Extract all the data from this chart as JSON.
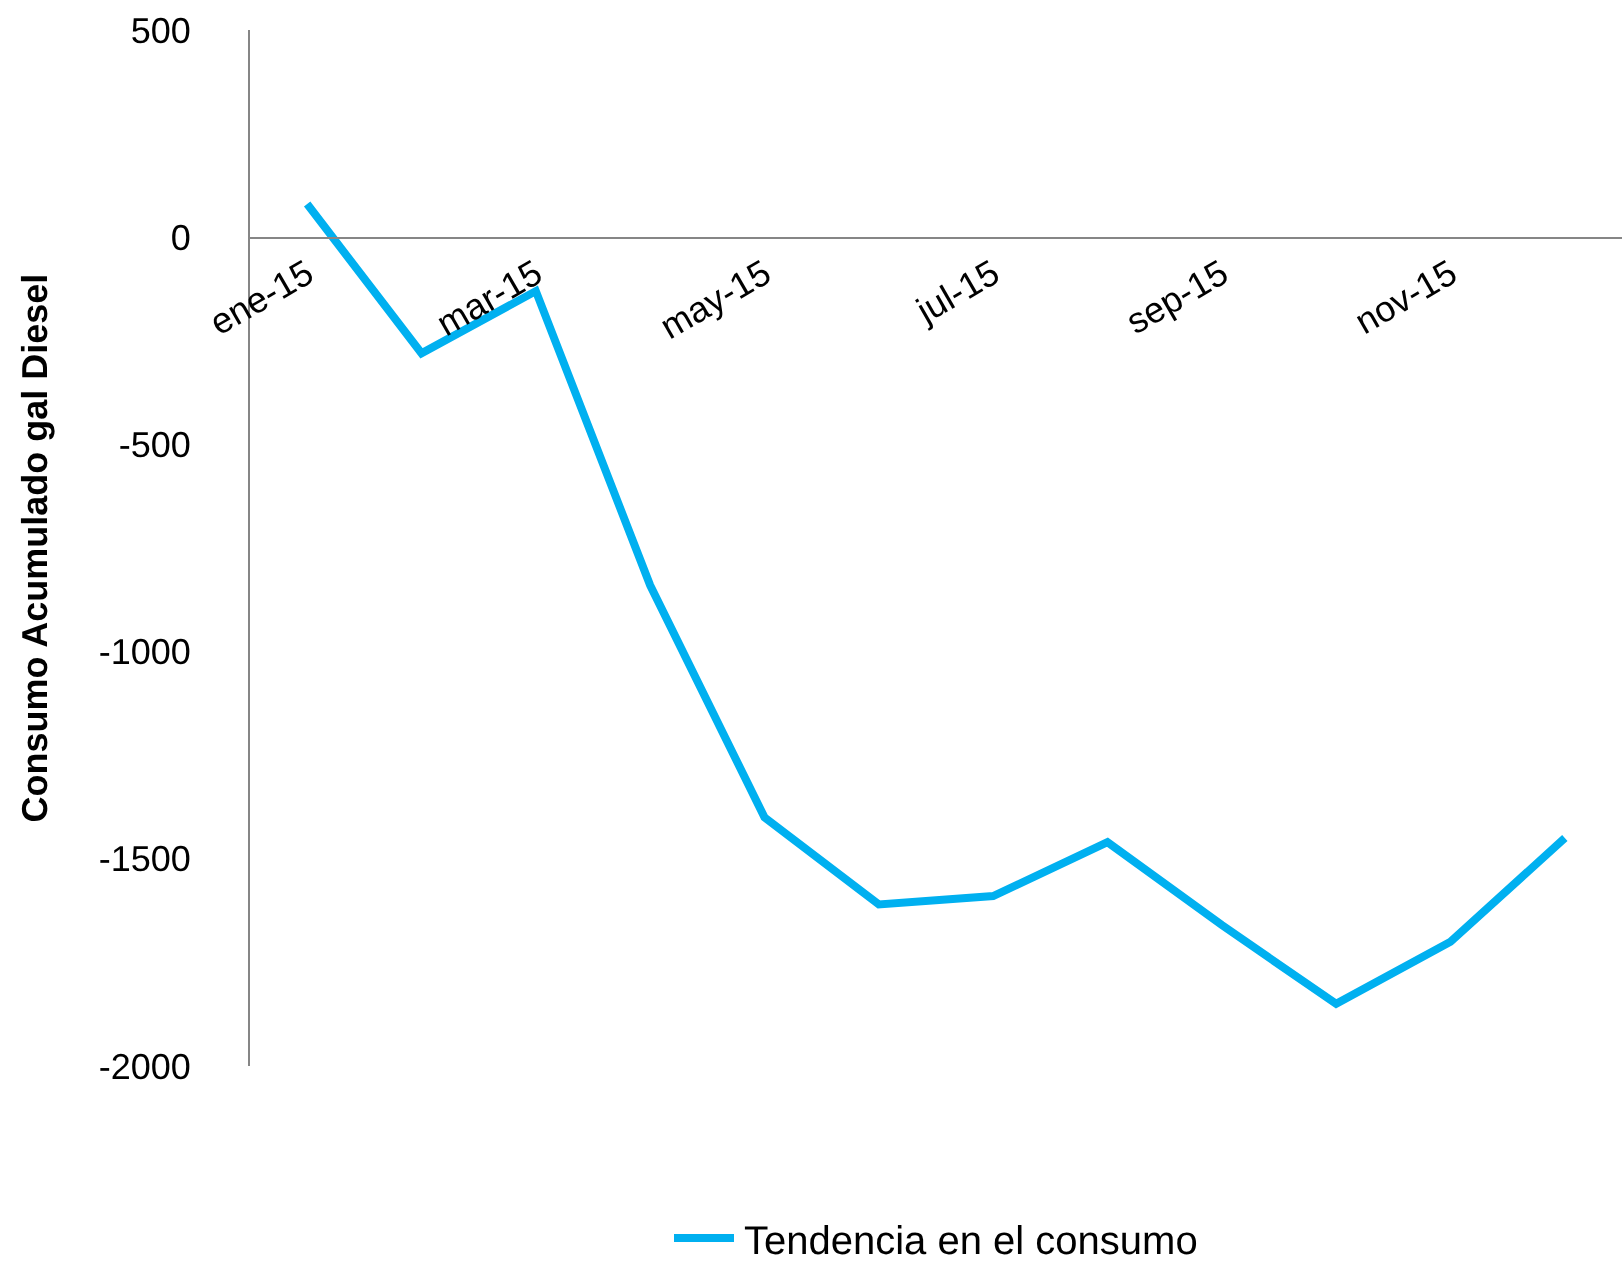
{
  "chart_data": {
    "type": "line",
    "ylabel": "Consumo Acumulado gal Diesel",
    "categories": [
      "ene-15",
      null,
      "mar-15",
      null,
      "may-15",
      null,
      "jul-15",
      null,
      "sep-15",
      null,
      "nov-15",
      null
    ],
    "series": [
      {
        "name": "Tendencia en el consumo",
        "color": "#00b0f0",
        "values": [
          80,
          -280,
          -130,
          -840,
          -1400,
          -1610,
          -1590,
          -1460,
          -1660,
          -1850,
          -1700,
          -1450
        ]
      }
    ],
    "ylim": [
      -2000,
      500
    ],
    "yticks": [
      -2000,
      -1500,
      -1000,
      -500,
      0,
      500
    ],
    "grid": false,
    "legend": "bottom",
    "marker": "none",
    "line_style": "solid"
  }
}
